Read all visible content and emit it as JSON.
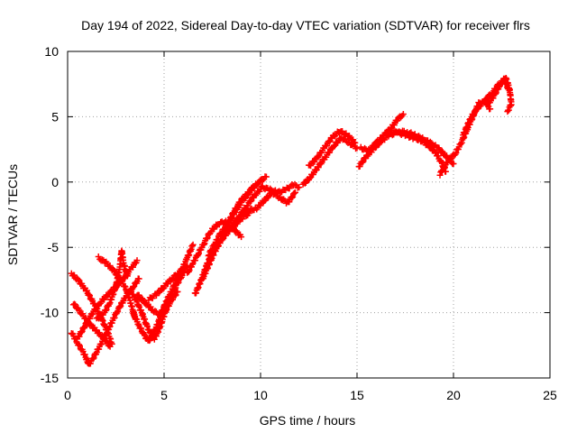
{
  "chart_data": {
    "type": "scatter",
    "title": "Day 194 of 2022, Sidereal Day-to-day VTEC variation (SDTVAR) for receiver flrs",
    "xlabel": "GPS time / hours",
    "ylabel": "SDTVAR / TECUs",
    "xlim": [
      0,
      25
    ],
    "ylim": [
      -15,
      10
    ],
    "xticks": [
      "0",
      "5",
      "10",
      "15",
      "20",
      "25"
    ],
    "yticks": [
      "-15",
      "-10",
      "-5",
      "0",
      "5",
      "10"
    ],
    "grid": true,
    "marker": "plus",
    "series": [
      {
        "name": "SDTVAR",
        "color": "#ff0000",
        "tracks": [
          [
            [
              0.2,
              -7.0
            ],
            [
              0.6,
              -7.6
            ],
            [
              1.0,
              -8.4
            ],
            [
              1.4,
              -9.4
            ],
            [
              1.8,
              -10.6
            ],
            [
              2.1,
              -11.6
            ],
            [
              2.3,
              -12.4
            ]
          ],
          [
            [
              0.2,
              -11.5
            ],
            [
              0.5,
              -12.3
            ],
            [
              0.8,
              -13.0
            ],
            [
              1.0,
              -13.6
            ],
            [
              1.1,
              -14.0
            ],
            [
              1.4,
              -13.3
            ],
            [
              1.8,
              -12.2
            ],
            [
              2.2,
              -11.0
            ],
            [
              2.6,
              -9.8
            ],
            [
              3.0,
              -8.8
            ],
            [
              3.4,
              -8.0
            ],
            [
              3.7,
              -7.4
            ]
          ],
          [
            [
              0.3,
              -9.3
            ],
            [
              0.7,
              -10.0
            ],
            [
              1.1,
              -10.8
            ],
            [
              1.5,
              -11.4
            ],
            [
              1.9,
              -12.0
            ],
            [
              2.2,
              -12.6
            ]
          ],
          [
            [
              0.5,
              -12.0
            ],
            [
              0.9,
              -11.0
            ],
            [
              1.3,
              -10.0
            ],
            [
              1.7,
              -9.2
            ],
            [
              2.1,
              -8.6
            ],
            [
              2.5,
              -8.0
            ],
            [
              2.9,
              -7.4
            ],
            [
              3.3,
              -6.6
            ],
            [
              3.6,
              -6.0
            ]
          ],
          [
            [
              1.5,
              -10.5
            ],
            [
              1.9,
              -10.0
            ],
            [
              2.2,
              -9.2
            ],
            [
              2.5,
              -8.0
            ],
            [
              2.7,
              -6.6
            ],
            [
              2.8,
              -5.2
            ],
            [
              2.9,
              -6.2
            ],
            [
              3.1,
              -7.2
            ]
          ],
          [
            [
              1.6,
              -5.8
            ],
            [
              2.0,
              -6.2
            ],
            [
              2.4,
              -6.8
            ],
            [
              2.8,
              -7.6
            ],
            [
              3.1,
              -8.4
            ],
            [
              3.3,
              -9.4
            ],
            [
              3.5,
              -10.4
            ]
          ],
          [
            [
              3.3,
              -8.4
            ],
            [
              3.6,
              -9.2
            ],
            [
              3.9,
              -10.2
            ],
            [
              4.1,
              -11.0
            ],
            [
              4.3,
              -11.6
            ],
            [
              4.5,
              -12.0
            ],
            [
              4.7,
              -11.4
            ],
            [
              4.9,
              -10.6
            ],
            [
              5.1,
              -9.8
            ],
            [
              5.4,
              -9.0
            ],
            [
              5.7,
              -8.4
            ]
          ],
          [
            [
              3.4,
              -10.0
            ],
            [
              3.7,
              -11.0
            ],
            [
              4.0,
              -11.8
            ],
            [
              4.2,
              -12.2
            ],
            [
              4.5,
              -11.4
            ],
            [
              4.8,
              -10.4
            ],
            [
              5.0,
              -9.6
            ],
            [
              5.3,
              -8.8
            ],
            [
              5.6,
              -8.0
            ],
            [
              5.9,
              -7.2
            ],
            [
              6.2,
              -6.4
            ]
          ],
          [
            [
              3.6,
              -8.6
            ],
            [
              4.0,
              -9.2
            ],
            [
              4.4,
              -9.8
            ],
            [
              4.8,
              -10.2
            ],
            [
              5.1,
              -9.2
            ],
            [
              5.5,
              -8.0
            ],
            [
              5.9,
              -6.8
            ],
            [
              6.2,
              -5.8
            ],
            [
              6.5,
              -4.8
            ]
          ],
          [
            [
              4.2,
              -9.0
            ],
            [
              4.6,
              -8.6
            ],
            [
              5.0,
              -8.0
            ],
            [
              5.4,
              -7.4
            ],
            [
              5.7,
              -7.0
            ],
            [
              6.0,
              -6.6
            ]
          ],
          [
            [
              6.2,
              -7.0
            ],
            [
              6.5,
              -6.2
            ],
            [
              6.8,
              -5.4
            ],
            [
              7.1,
              -4.6
            ],
            [
              7.4,
              -3.8
            ],
            [
              7.8,
              -3.2
            ],
            [
              8.2,
              -3.0
            ],
            [
              8.6,
              -3.6
            ],
            [
              9.0,
              -4.2
            ]
          ],
          [
            [
              6.6,
              -8.6
            ],
            [
              6.9,
              -7.6
            ],
            [
              7.2,
              -6.4
            ],
            [
              7.5,
              -5.4
            ],
            [
              7.9,
              -4.6
            ],
            [
              8.2,
              -4.0
            ],
            [
              8.6,
              -3.4
            ],
            [
              9.0,
              -2.8
            ],
            [
              9.4,
              -2.4
            ]
          ],
          [
            [
              7.0,
              -7.4
            ],
            [
              7.3,
              -6.4
            ],
            [
              7.6,
              -5.4
            ],
            [
              7.9,
              -4.6
            ],
            [
              8.2,
              -3.6
            ],
            [
              8.5,
              -2.6
            ],
            [
              8.8,
              -1.8
            ],
            [
              9.1,
              -1.2
            ],
            [
              9.4,
              -0.8
            ],
            [
              9.6,
              -0.4
            ]
          ],
          [
            [
              7.3,
              -5.6
            ],
            [
              7.6,
              -4.8
            ],
            [
              7.9,
              -4.0
            ],
            [
              8.3,
              -3.2
            ],
            [
              8.7,
              -2.2
            ],
            [
              9.1,
              -1.4
            ],
            [
              9.5,
              -0.6
            ],
            [
              9.9,
              0.0
            ],
            [
              10.3,
              0.4
            ]
          ],
          [
            [
              8.5,
              -3.4
            ],
            [
              8.9,
              -2.6
            ],
            [
              9.3,
              -1.8
            ],
            [
              9.7,
              -1.0
            ],
            [
              10.1,
              -0.4
            ],
            [
              10.5,
              -0.6
            ],
            [
              10.9,
              -0.8
            ],
            [
              11.3,
              -0.6
            ],
            [
              11.7,
              -0.2
            ],
            [
              12.0,
              -0.4
            ]
          ],
          [
            [
              9.0,
              -2.4
            ],
            [
              9.4,
              -2.2
            ],
            [
              9.8,
              -2.0
            ],
            [
              10.2,
              -1.4
            ],
            [
              10.6,
              -0.8
            ],
            [
              11.0,
              -1.2
            ],
            [
              11.4,
              -1.6
            ],
            [
              11.8,
              -0.8
            ]
          ],
          [
            [
              12.2,
              -0.2
            ],
            [
              12.6,
              0.4
            ],
            [
              13.0,
              1.2
            ],
            [
              13.4,
              2.0
            ],
            [
              13.8,
              2.8
            ],
            [
              14.2,
              3.4
            ],
            [
              14.6,
              3.0
            ],
            [
              15.0,
              2.6
            ]
          ],
          [
            [
              12.5,
              1.2
            ],
            [
              12.9,
              1.8
            ],
            [
              13.3,
              2.6
            ],
            [
              13.7,
              3.4
            ],
            [
              14.1,
              3.9
            ],
            [
              14.5,
              3.6
            ],
            [
              14.9,
              3.0
            ]
          ],
          [
            [
              15.2,
              2.6
            ],
            [
              15.6,
              2.4
            ],
            [
              16.0,
              3.0
            ],
            [
              16.4,
              3.6
            ],
            [
              16.8,
              4.2
            ],
            [
              17.1,
              4.8
            ],
            [
              17.4,
              5.2
            ]
          ],
          [
            [
              15.1,
              1.2
            ],
            [
              15.5,
              2.0
            ],
            [
              15.9,
              2.6
            ],
            [
              16.3,
              3.2
            ],
            [
              16.7,
              3.6
            ],
            [
              17.1,
              3.8
            ],
            [
              17.5,
              3.6
            ],
            [
              17.9,
              3.4
            ],
            [
              18.3,
              3.2
            ],
            [
              18.7,
              2.8
            ],
            [
              19.1,
              2.2
            ],
            [
              19.4,
              1.4
            ],
            [
              19.6,
              0.8
            ]
          ],
          [
            [
              16.8,
              3.8
            ],
            [
              17.2,
              3.9
            ],
            [
              17.6,
              3.8
            ],
            [
              18.0,
              3.6
            ],
            [
              18.4,
              3.3
            ],
            [
              18.8,
              3.0
            ],
            [
              19.2,
              2.6
            ],
            [
              19.6,
              2.0
            ],
            [
              20.0,
              1.4
            ]
          ],
          [
            [
              19.3,
              0.6
            ],
            [
              19.7,
              1.6
            ],
            [
              20.1,
              2.2
            ],
            [
              20.4,
              3.0
            ],
            [
              20.7,
              4.0
            ],
            [
              21.0,
              5.0
            ],
            [
              21.3,
              6.0
            ],
            [
              21.6,
              6.2
            ],
            [
              21.9,
              5.6
            ]
          ],
          [
            [
              20.5,
              3.6
            ],
            [
              20.8,
              4.6
            ],
            [
              21.1,
              5.4
            ],
            [
              21.4,
              5.9
            ],
            [
              21.7,
              6.4
            ],
            [
              22.0,
              6.8
            ],
            [
              22.3,
              7.4
            ],
            [
              22.6,
              7.8
            ],
            [
              22.9,
              7.0
            ]
          ],
          [
            [
              21.8,
              6.0
            ],
            [
              22.1,
              6.6
            ],
            [
              22.4,
              7.4
            ],
            [
              22.7,
              8.0
            ],
            [
              22.9,
              7.2
            ],
            [
              23.0,
              6.0
            ],
            [
              22.8,
              5.4
            ]
          ]
        ]
      }
    ]
  }
}
